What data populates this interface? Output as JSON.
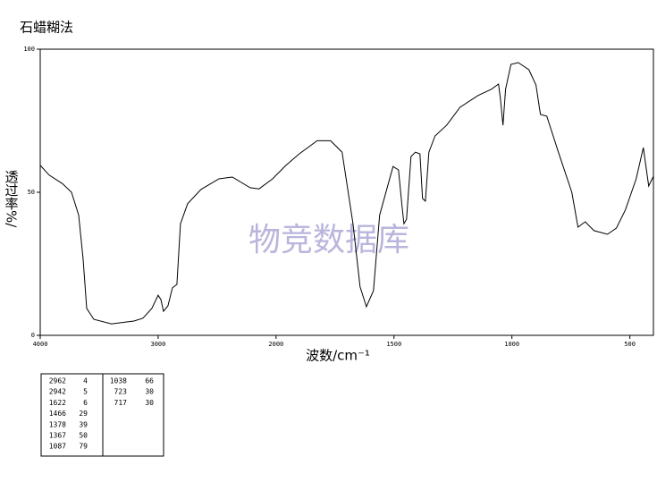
{
  "chart_data": {
    "type": "line",
    "title": "石蜡糊法",
    "y_label": "透过率%/",
    "x_label": "波数/cm⁻¹",
    "watermark": "物竞数据库",
    "color": "#000000",
    "x": [
      4000,
      3924,
      3811,
      3735,
      3674,
      3636,
      3606,
      3545,
      3394,
      3205,
      3129,
      3053,
      3000,
      2977,
      2955,
      2917,
      2879,
      2841,
      2811,
      2750,
      2636,
      2485,
      2371,
      2220,
      2144,
      2030,
      1958,
      1902,
      1826,
      1769,
      1720,
      1674,
      1644,
      1617,
      1587,
      1561,
      1504,
      1481,
      1466,
      1458,
      1447,
      1428,
      1409,
      1390,
      1379,
      1367,
      1352,
      1326,
      1277,
      1220,
      1144,
      1087,
      1057,
      1049,
      1038,
      1027,
      1004,
      973,
      928,
      898,
      879,
      852,
      803,
      746,
      720,
      689,
      652,
      595,
      557,
      519,
      473,
      443,
      420,
      400
    ],
    "values": [
      59.4,
      56,
      53,
      50,
      42,
      26.6,
      9.4,
      5.6,
      4,
      5,
      6,
      9.4,
      14,
      12.5,
      8.4,
      10.3,
      16.6,
      17.8,
      39,
      46,
      51,
      54.7,
      55.3,
      51.6,
      51.2,
      54.7,
      59.4,
      63.4,
      68,
      68,
      64,
      39,
      17,
      10,
      15.6,
      42,
      59,
      57.8,
      45.3,
      39,
      40.6,
      62.5,
      64,
      63.4,
      47.8,
      46.9,
      64,
      69.7,
      73.4,
      79.7,
      83.8,
      86,
      87.8,
      82.8,
      73.4,
      86,
      94.7,
      95.3,
      92.8,
      87.5,
      77.2,
      76.6,
      64,
      50,
      37.8,
      39.7,
      36.6,
      35.3,
      37.5,
      43.8,
      54.7,
      65.6,
      52.2,
      55.6
    ],
    "xlim": [
      4000,
      400
    ],
    "xticks": [
      4000,
      3000,
      2000,
      1500,
      1000,
      500
    ],
    "ylim": [
      0,
      100
    ],
    "yticks": [
      0,
      50,
      100
    ],
    "peak_table": {
      "left": [
        [
          2962,
          4
        ],
        [
          2942,
          5
        ],
        [
          1622,
          6
        ],
        [
          1466,
          29
        ],
        [
          1378,
          39
        ],
        [
          1367,
          50
        ],
        [
          1087,
          79
        ]
      ],
      "right": [
        [
          1038,
          66
        ],
        [
          723,
          30
        ],
        [
          717,
          30
        ]
      ]
    }
  }
}
